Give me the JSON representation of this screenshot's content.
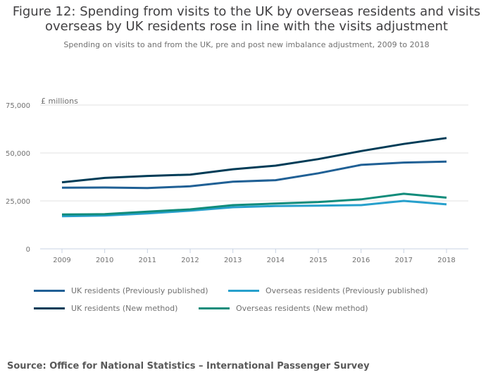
{
  "chart_data": {
    "type": "line",
    "title": "Figure 12: Spending from visits to the UK by overseas residents and visits overseas by UK residents rose in line with the visits adjustment",
    "subtitle": "Spending on visits to and from the UK, pre and post new imbalance adjustment, 2009 to 2018",
    "ylabel": "£ millions",
    "xlabel": "",
    "x": [
      "2009",
      "2010",
      "2011",
      "2012",
      "2013",
      "2014",
      "2015",
      "2016",
      "2017",
      "2018"
    ],
    "ylim": [
      0,
      75000
    ],
    "yticks": [
      0,
      25000,
      50000,
      75000
    ],
    "ytick_labels": [
      "0",
      "25,000",
      "50,000",
      "75,000"
    ],
    "grid": true,
    "legend_position": "bottom",
    "series": [
      {
        "name": "UK residents (Previously published)",
        "color": "#206095",
        "values": [
          31900,
          32000,
          31700,
          32600,
          35000,
          35800,
          39400,
          43800,
          45000,
          45500
        ]
      },
      {
        "name": "Overseas residents (Previously published)",
        "color": "#27a0cc",
        "values": [
          17000,
          17400,
          18500,
          19900,
          21700,
          22300,
          22500,
          22800,
          25000,
          23200
        ]
      },
      {
        "name": "UK residents (New method)",
        "color": "#003c57",
        "values": [
          34700,
          37000,
          38000,
          38700,
          41500,
          43400,
          46800,
          51000,
          54700,
          57800
        ]
      },
      {
        "name": "Overseas residents (New method)",
        "color": "#118c7b",
        "values": [
          17900,
          18100,
          19400,
          20600,
          22800,
          23600,
          24400,
          25800,
          28700,
          26700
        ]
      }
    ]
  },
  "source": "Source: Office for National Statistics – International Passenger Survey"
}
